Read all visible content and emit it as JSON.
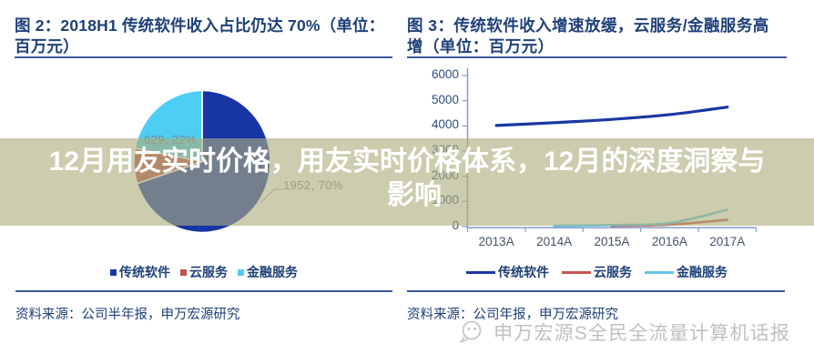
{
  "palette": {
    "title_navy": "#1f4078",
    "rule_blue": "#40589a",
    "pie_navy": "#1735a5",
    "pie_red": "#c0504d",
    "pie_cyan": "#4ecdf5",
    "line_navy": "#1a38a0",
    "line_red": "#c9564e",
    "line_cyan": "#62c4e3",
    "axis_blue": "#8a9bc9",
    "data_label_gray": "#7f7f7f",
    "overlay_band": "rgba(172,173,124,0.62)"
  },
  "overlay": {
    "line1": "12月用友实时价格，用友实时价格体系，12月的深度洞察与",
    "line2": "影响"
  },
  "left_figure": {
    "title_line1": "图 2：2018H1 传统软件收入占比仍达 70%（单位：",
    "title_line2": "百万元）",
    "source": "资料来源：公司半年报，申万宏源研究",
    "legend": [
      {
        "label": "传统软件",
        "color": "#1735a5"
      },
      {
        "label": "云服务",
        "color": "#c0504d"
      },
      {
        "label": "金融服务",
        "color": "#4ecdf5"
      }
    ]
  },
  "right_figure": {
    "title_line1": "图 3：传统软件收入增速放缓，云服务/金融服务高",
    "title_line2": "增（单位：百万元）",
    "source": "资料来源：公司年报，申万宏源研究",
    "legend": [
      {
        "label": "传统软件",
        "color": "#1a38a0"
      },
      {
        "label": "云服务",
        "color": "#c9564e"
      },
      {
        "label": "金融服务",
        "color": "#62c4e3"
      }
    ]
  },
  "watermark": {
    "text": "申万宏源S全民全流量计算机话报"
  },
  "chart_data": [
    {
      "type": "pie",
      "title": "图 2：2018H1 传统软件收入占比仍达 70%（单位：百万元）",
      "categories": [
        "传统软件",
        "云服务",
        "金融服务"
      ],
      "values": [
        1952,
        208,
        629
      ],
      "percentages": [
        70,
        8,
        22
      ],
      "visible_labels": [
        "1952, 70%",
        "629, 22%"
      ],
      "colors": [
        "#1735a5",
        "#c0504d",
        "#4ecdf5"
      ],
      "legend_position": "bottom"
    },
    {
      "type": "line",
      "title": "图 3：传统软件收入增速放缓，云服务/金融服务高增（单位：百万元）",
      "categories": [
        "2013A",
        "2014A",
        "2015A",
        "2016A",
        "2017A"
      ],
      "series": [
        {
          "name": "传统软件",
          "color": "#1a38a0",
          "width": 3.2,
          "values": [
            4020,
            4130,
            4260,
            4450,
            4750
          ]
        },
        {
          "name": "云服务",
          "color": "#c9564e",
          "width": 2.6,
          "values": [
            null,
            null,
            30,
            80,
            270
          ]
        },
        {
          "name": "金融服务",
          "color": "#62c4e3",
          "width": 2.6,
          "values": [
            null,
            30,
            60,
            140,
            670
          ]
        }
      ],
      "ylim": [
        0,
        6000
      ],
      "yticks": [
        0,
        1000,
        2000,
        3000,
        4000,
        5000,
        6000
      ],
      "grid": false,
      "legend_position": "bottom"
    }
  ]
}
